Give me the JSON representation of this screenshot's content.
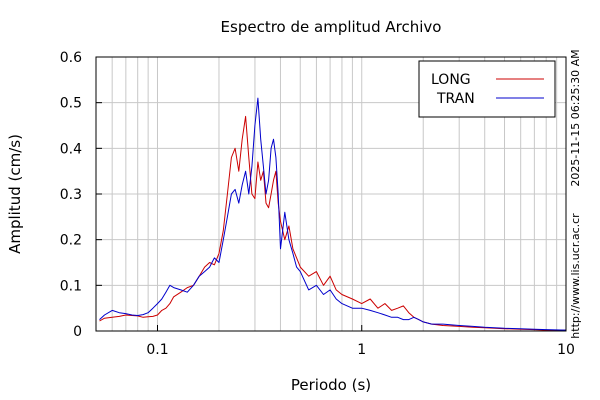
{
  "chart_data": {
    "type": "line",
    "title": "Espectro de amplitud Archivo",
    "xlabel": "Periodo (s)",
    "ylabel": "Amplitud (cm/s)",
    "xscale": "log",
    "xlim": [
      0.05,
      10
    ],
    "ylim": [
      0,
      0.6
    ],
    "xticks": [
      {
        "value": 0.1,
        "label": "0.1"
      },
      {
        "value": 1,
        "label": "1"
      },
      {
        "value": 10,
        "label": "10"
      }
    ],
    "yticks": [
      {
        "value": 0,
        "label": "0"
      },
      {
        "value": 0.1,
        "label": "0.1"
      },
      {
        "value": 0.2,
        "label": "0.2"
      },
      {
        "value": 0.3,
        "label": "0.3"
      },
      {
        "value": 0.4,
        "label": "0.4"
      },
      {
        "value": 0.5,
        "label": "0.5"
      },
      {
        "value": 0.6,
        "label": "0.6"
      }
    ],
    "grid": true,
    "legend_position": "top-right",
    "side_text": {
      "timestamp": "2025-11-15 06:25:30 AM",
      "url": "http://www.lis.ucr.ac.cr"
    },
    "series": [
      {
        "name": "LONG",
        "color": "#cc0000",
        "x": [
          0.052,
          0.055,
          0.06,
          0.065,
          0.07,
          0.075,
          0.08,
          0.085,
          0.09,
          0.095,
          0.1,
          0.105,
          0.11,
          0.115,
          0.12,
          0.13,
          0.14,
          0.15,
          0.16,
          0.17,
          0.18,
          0.19,
          0.2,
          0.21,
          0.22,
          0.23,
          0.24,
          0.25,
          0.26,
          0.27,
          0.28,
          0.29,
          0.3,
          0.31,
          0.32,
          0.33,
          0.34,
          0.35,
          0.36,
          0.37,
          0.38,
          0.39,
          0.4,
          0.42,
          0.44,
          0.46,
          0.48,
          0.5,
          0.55,
          0.6,
          0.65,
          0.7,
          0.75,
          0.8,
          0.9,
          1.0,
          1.1,
          1.2,
          1.3,
          1.4,
          1.5,
          1.6,
          1.7,
          1.8,
          1.9,
          2.0,
          2.2,
          2.5,
          3.0,
          3.5,
          4.0,
          5.0,
          6.0,
          7.0,
          8.0,
          10.0
        ],
        "y": [
          0.022,
          0.028,
          0.03,
          0.032,
          0.035,
          0.034,
          0.033,
          0.03,
          0.031,
          0.032,
          0.035,
          0.045,
          0.05,
          0.06,
          0.075,
          0.085,
          0.095,
          0.1,
          0.12,
          0.14,
          0.15,
          0.145,
          0.17,
          0.22,
          0.3,
          0.38,
          0.4,
          0.35,
          0.42,
          0.47,
          0.38,
          0.3,
          0.29,
          0.37,
          0.33,
          0.35,
          0.28,
          0.27,
          0.3,
          0.33,
          0.35,
          0.28,
          0.24,
          0.2,
          0.23,
          0.18,
          0.16,
          0.14,
          0.12,
          0.13,
          0.1,
          0.12,
          0.09,
          0.08,
          0.07,
          0.06,
          0.07,
          0.05,
          0.06,
          0.045,
          0.05,
          0.055,
          0.04,
          0.03,
          0.025,
          0.02,
          0.015,
          0.012,
          0.01,
          0.008,
          0.007,
          0.005,
          0.004,
          0.003,
          0.002,
          0.002
        ]
      },
      {
        "name": "TRAN",
        "color": "#0000cc",
        "x": [
          0.052,
          0.055,
          0.06,
          0.065,
          0.07,
          0.075,
          0.08,
          0.085,
          0.09,
          0.095,
          0.1,
          0.105,
          0.11,
          0.115,
          0.12,
          0.13,
          0.14,
          0.15,
          0.16,
          0.17,
          0.18,
          0.19,
          0.2,
          0.21,
          0.22,
          0.23,
          0.24,
          0.25,
          0.26,
          0.27,
          0.28,
          0.29,
          0.3,
          0.31,
          0.32,
          0.33,
          0.34,
          0.35,
          0.36,
          0.37,
          0.38,
          0.39,
          0.4,
          0.42,
          0.44,
          0.46,
          0.48,
          0.5,
          0.55,
          0.6,
          0.65,
          0.7,
          0.75,
          0.8,
          0.9,
          1.0,
          1.1,
          1.2,
          1.3,
          1.4,
          1.5,
          1.6,
          1.7,
          1.8,
          1.9,
          2.0,
          2.2,
          2.5,
          3.0,
          3.5,
          4.0,
          5.0,
          6.0,
          7.0,
          8.0,
          10.0
        ],
        "y": [
          0.025,
          0.035,
          0.045,
          0.04,
          0.038,
          0.035,
          0.034,
          0.036,
          0.04,
          0.05,
          0.06,
          0.07,
          0.085,
          0.1,
          0.095,
          0.09,
          0.085,
          0.1,
          0.12,
          0.13,
          0.14,
          0.16,
          0.15,
          0.2,
          0.25,
          0.3,
          0.31,
          0.28,
          0.32,
          0.35,
          0.3,
          0.36,
          0.45,
          0.51,
          0.42,
          0.36,
          0.3,
          0.33,
          0.4,
          0.42,
          0.38,
          0.3,
          0.18,
          0.26,
          0.2,
          0.17,
          0.14,
          0.13,
          0.09,
          0.1,
          0.08,
          0.09,
          0.07,
          0.06,
          0.05,
          0.05,
          0.045,
          0.04,
          0.035,
          0.03,
          0.03,
          0.025,
          0.025,
          0.03,
          0.025,
          0.02,
          0.015,
          0.015,
          0.012,
          0.01,
          0.008,
          0.006,
          0.005,
          0.004,
          0.003,
          0.002
        ]
      }
    ]
  }
}
